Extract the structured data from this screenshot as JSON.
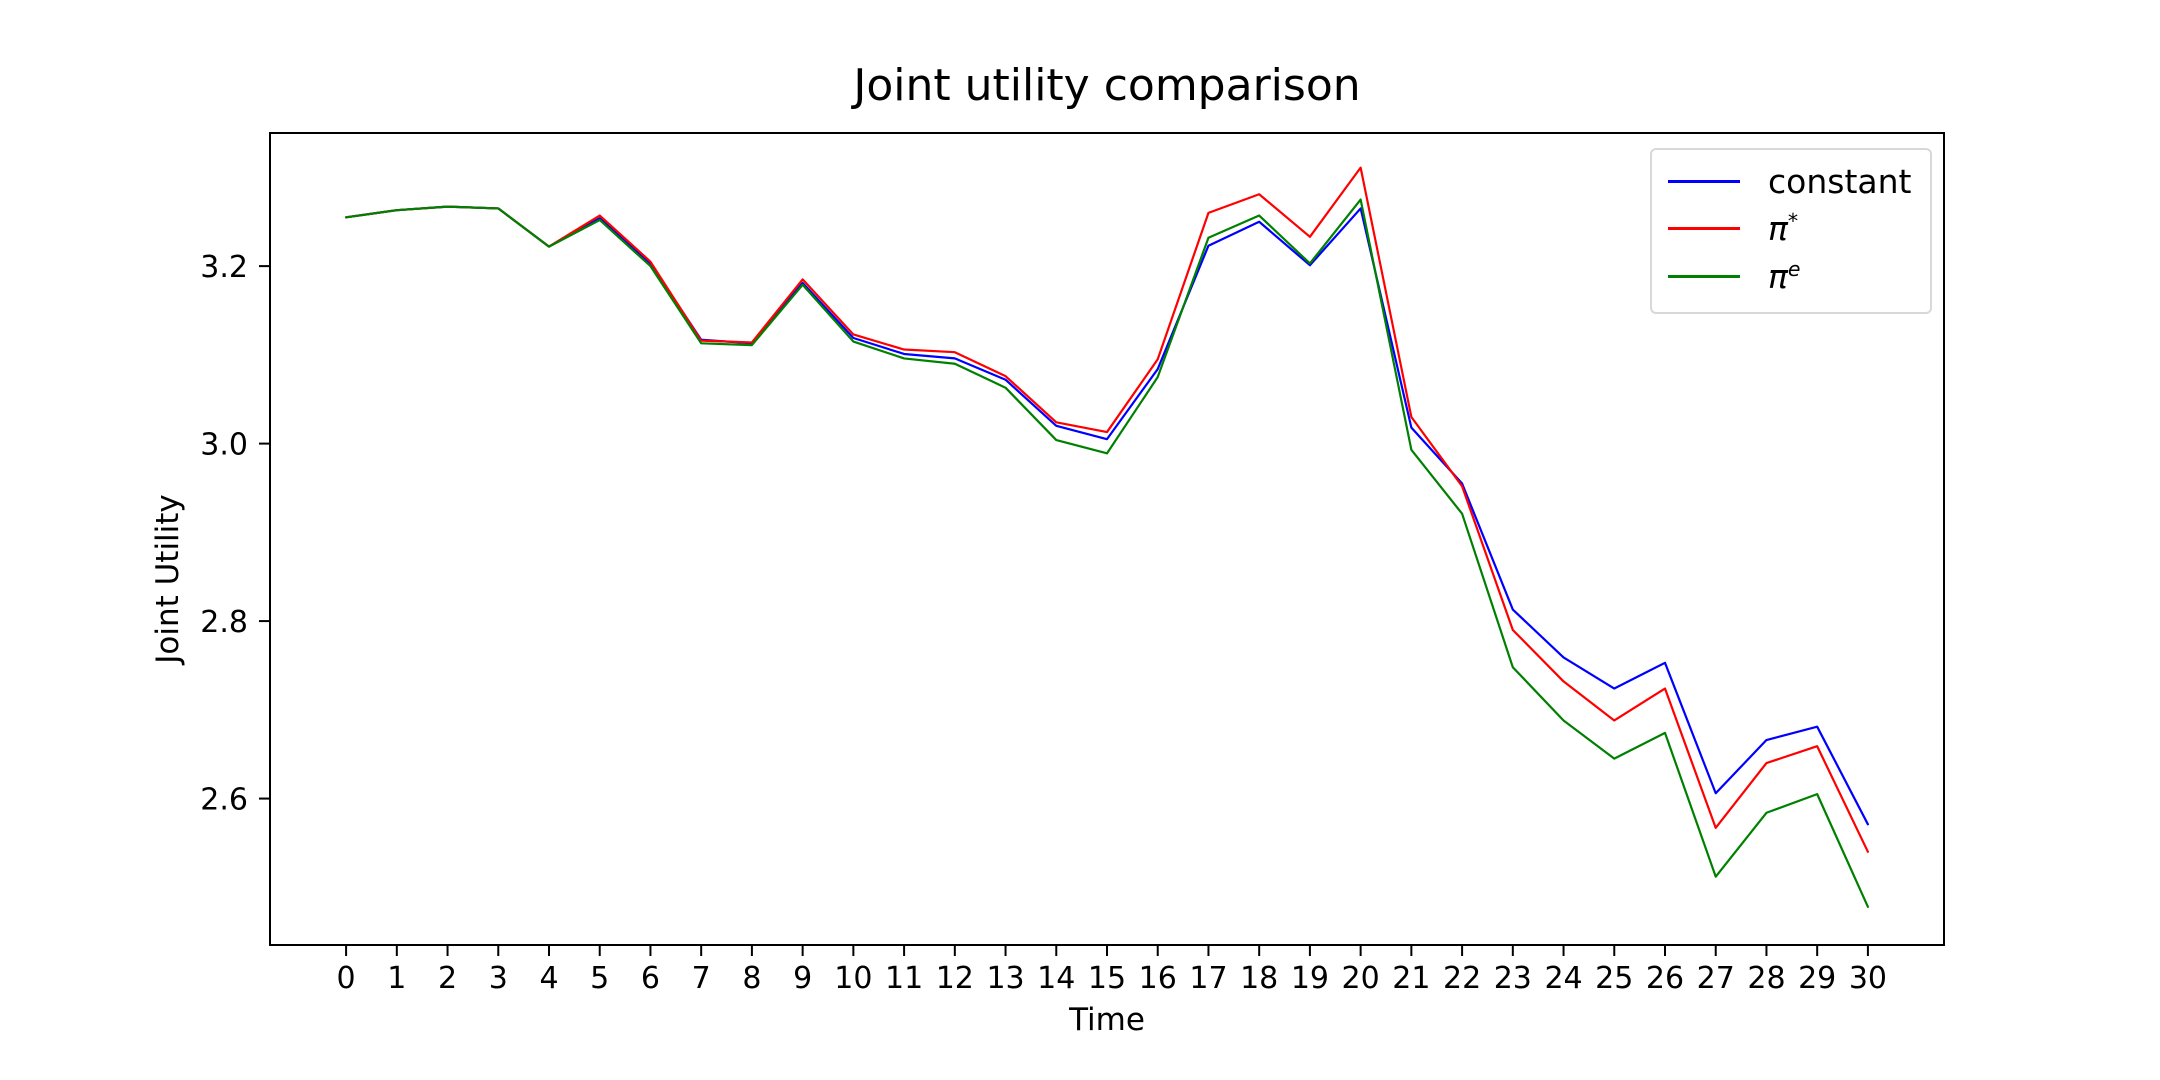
{
  "chart_data": {
    "type": "line",
    "title": "Joint utility comparison",
    "xlabel": "Time",
    "ylabel": "Joint Utility",
    "xlim": [
      -1.5,
      31.5
    ],
    "ylim": [
      2.435,
      3.35
    ],
    "grid": false,
    "legend_position": "upper-right",
    "x_tick_labels": [
      "0",
      "1",
      "2",
      "3",
      "4",
      "5",
      "6",
      "7",
      "8",
      "9",
      "10",
      "11",
      "12",
      "13",
      "14",
      "15",
      "16",
      "17",
      "18",
      "19",
      "20",
      "21",
      "22",
      "23",
      "24",
      "25",
      "26",
      "27",
      "28",
      "29",
      "30"
    ],
    "y_tick_labels": [
      "2.6",
      "2.8",
      "3.0",
      "3.2"
    ],
    "x": [
      0,
      1,
      2,
      3,
      4,
      5,
      6,
      7,
      8,
      9,
      10,
      11,
      12,
      13,
      14,
      15,
      16,
      17,
      18,
      19,
      20,
      21,
      22,
      23,
      24,
      25,
      26,
      27,
      28,
      29,
      30
    ],
    "series": [
      {
        "name": "constant",
        "color": "#0000ff",
        "values": [
          3.255,
          3.263,
          3.267,
          3.265,
          3.222,
          3.254,
          3.203,
          3.117,
          3.113,
          3.181,
          3.119,
          3.101,
          3.096,
          3.072,
          3.02,
          3.005,
          3.084,
          3.223,
          3.25,
          3.201,
          3.265,
          3.018,
          2.955,
          2.813,
          2.759,
          2.724,
          2.753,
          2.606,
          2.666,
          2.681,
          2.571
        ]
      },
      {
        "name": "π*",
        "color": "#ff0000",
        "values": [
          3.255,
          3.263,
          3.267,
          3.265,
          3.222,
          3.257,
          3.205,
          3.116,
          3.114,
          3.185,
          3.123,
          3.106,
          3.103,
          3.076,
          3.024,
          3.013,
          3.095,
          3.26,
          3.281,
          3.233,
          3.311,
          3.03,
          2.952,
          2.79,
          2.732,
          2.688,
          2.724,
          2.567,
          2.64,
          2.659,
          2.54
        ]
      },
      {
        "name": "πᵉ",
        "color": "#008000",
        "values": [
          3.255,
          3.263,
          3.267,
          3.265,
          3.222,
          3.252,
          3.2,
          3.113,
          3.111,
          3.179,
          3.115,
          3.096,
          3.09,
          3.063,
          3.004,
          2.989,
          3.075,
          3.232,
          3.257,
          3.203,
          3.275,
          2.993,
          2.921,
          2.748,
          2.688,
          2.645,
          2.674,
          2.512,
          2.584,
          2.605,
          2.478
        ]
      }
    ]
  },
  "legend": {
    "entries": [
      {
        "base": "constant",
        "sup": "",
        "color": "#0000ff"
      },
      {
        "base": "π",
        "sup": "*",
        "color": "#ff0000"
      },
      {
        "base": "π",
        "sup": "e",
        "color": "#008000"
      }
    ]
  },
  "axis_color": "#000000"
}
